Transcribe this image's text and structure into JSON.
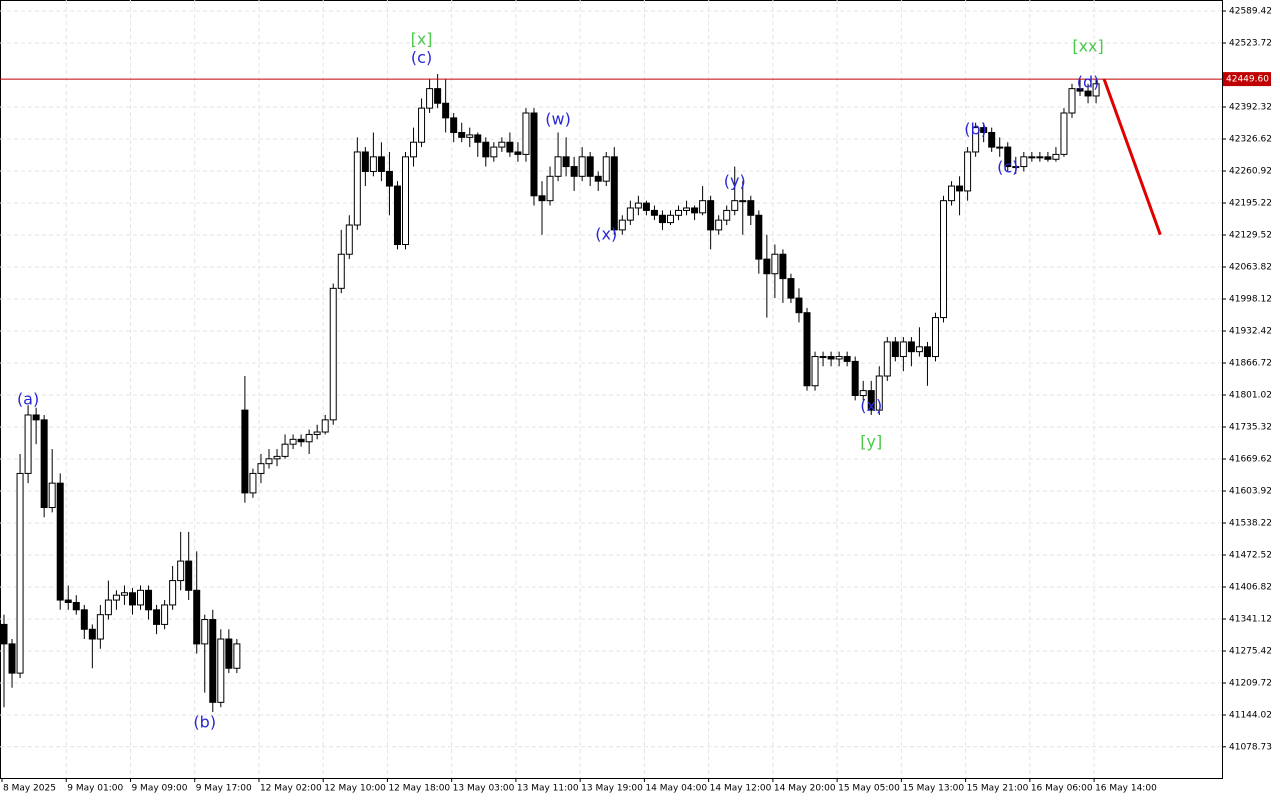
{
  "chart_data": {
    "type": "candlestick",
    "categories": [
      "8 May 2025",
      null,
      null,
      null,
      null,
      null,
      null,
      null,
      "9 May 01:00",
      null,
      null,
      null,
      null,
      null,
      null,
      null,
      "9 May 09:00",
      null,
      null,
      null,
      null,
      null,
      null,
      null,
      "9 May 17:00",
      null,
      null,
      null,
      null,
      null,
      null,
      null,
      "12 May 02:00",
      null,
      null,
      null,
      null,
      null,
      null,
      null,
      "12 May 10:00",
      null,
      null,
      null,
      null,
      null,
      null,
      null,
      "12 May 18:00",
      null,
      null,
      null,
      null,
      null,
      null,
      null,
      "13 May 03:00",
      null,
      null,
      null,
      null,
      null,
      null,
      null,
      "13 May 11:00",
      null,
      null,
      null,
      null,
      null,
      null,
      null,
      "13 May 19:00",
      null,
      null,
      null,
      null,
      null,
      null,
      null,
      "14 May 04:00",
      null,
      null,
      null,
      null,
      null,
      null,
      null,
      "14 May 12:00",
      null,
      null,
      null,
      null,
      null,
      null,
      null,
      "14 May 20:00",
      null,
      null,
      null,
      null,
      null,
      null,
      null,
      "15 May 05:00",
      null,
      null,
      null,
      null,
      null,
      null,
      null,
      "15 May 13:00",
      null,
      null,
      null,
      null,
      null,
      null,
      null,
      "15 May 21:00",
      null,
      null,
      null,
      null,
      null,
      null,
      null,
      "16 May 06:00",
      null,
      null,
      null,
      null,
      null,
      null,
      null,
      "16 May 14:00"
    ],
    "ohlc": [
      [
        41330,
        41350,
        41160,
        41290
      ],
      [
        41290,
        41300,
        41200,
        41230
      ],
      [
        41230,
        41680,
        41220,
        41640
      ],
      [
        41640,
        41780,
        41620,
        41760
      ],
      [
        41760,
        41775,
        41700,
        41750
      ],
      [
        41750,
        41760,
        41550,
        41570
      ],
      [
        41570,
        41690,
        41560,
        41620
      ],
      [
        41620,
        41640,
        41360,
        41380
      ],
      [
        41380,
        41410,
        41360,
        41375
      ],
      [
        41375,
        41390,
        41350,
        41360
      ],
      [
        41360,
        41370,
        41300,
        41320
      ],
      [
        41320,
        41330,
        41240,
        41300
      ],
      [
        41300,
        41370,
        41280,
        41350
      ],
      [
        41350,
        41420,
        41340,
        41380
      ],
      [
        41380,
        41400,
        41360,
        41390
      ],
      [
        41390,
        41410,
        41370,
        41395
      ],
      [
        41395,
        41405,
        41350,
        41370
      ],
      [
        41370,
        41410,
        41360,
        41400
      ],
      [
        41400,
        41410,
        41340,
        41360
      ],
      [
        41360,
        41370,
        41310,
        41330
      ],
      [
        41330,
        41380,
        41320,
        41370
      ],
      [
        41370,
        41450,
        41360,
        41420
      ],
      [
        41420,
        41520,
        41400,
        41460
      ],
      [
        41460,
        41520,
        41380,
        41400
      ],
      [
        41400,
        41480,
        41270,
        41290
      ],
      [
        41290,
        41350,
        41190,
        41340
      ],
      [
        41340,
        41360,
        41150,
        41170
      ],
      [
        41170,
        41320,
        41160,
        41300
      ],
      [
        41300,
        41320,
        41230,
        41240
      ],
      [
        41240,
        41300,
        41230,
        41290
      ],
      [
        41770,
        41840,
        41580,
        41600
      ],
      [
        41600,
        41650,
        41590,
        41640
      ],
      [
        41640,
        41680,
        41620,
        41660
      ],
      [
        41660,
        41690,
        41650,
        41670
      ],
      [
        41670,
        41690,
        41655,
        41675
      ],
      [
        41675,
        41720,
        41670,
        41700
      ],
      [
        41700,
        41720,
        41690,
        41710
      ],
      [
        41710,
        41720,
        41695,
        41705
      ],
      [
        41705,
        41730,
        41680,
        41720
      ],
      [
        41720,
        41740,
        41710,
        41725
      ],
      [
        41725,
        41760,
        41720,
        41750
      ],
      [
        41750,
        42030,
        41740,
        42020
      ],
      [
        42020,
        42140,
        42010,
        42090
      ],
      [
        42090,
        42170,
        42080,
        42150
      ],
      [
        42150,
        42330,
        42140,
        42300
      ],
      [
        42300,
        42310,
        42230,
        42260
      ],
      [
        42260,
        42340,
        42250,
        42290
      ],
      [
        42290,
        42320,
        42240,
        42260
      ],
      [
        42260,
        42300,
        42170,
        42230
      ],
      [
        42230,
        42240,
        42100,
        42110
      ],
      [
        42110,
        42300,
        42100,
        42290
      ],
      [
        42290,
        42350,
        42270,
        42320
      ],
      [
        42320,
        42410,
        42310,
        42390
      ],
      [
        42390,
        42450,
        42380,
        42430
      ],
      [
        42430,
        42460,
        42390,
        42400
      ],
      [
        42400,
        42450,
        42340,
        42370
      ],
      [
        42370,
        42380,
        42320,
        42340
      ],
      [
        42340,
        42360,
        42320,
        42330
      ],
      [
        42330,
        42350,
        42310,
        42335
      ],
      [
        42335,
        42340,
        42290,
        42320
      ],
      [
        42320,
        42330,
        42270,
        42290
      ],
      [
        42290,
        42320,
        42280,
        42310
      ],
      [
        42310,
        42330,
        42300,
        42320
      ],
      [
        42320,
        42340,
        42290,
        42300
      ],
      [
        42300,
        42320,
        42280,
        42295
      ],
      [
        42295,
        42390,
        42280,
        42380
      ],
      [
        42380,
        42390,
        42190,
        42210
      ],
      [
        42210,
        42240,
        42130,
        42200
      ],
      [
        42200,
        42270,
        42190,
        42250
      ],
      [
        42250,
        42340,
        42240,
        42290
      ],
      [
        42290,
        42330,
        42250,
        42270
      ],
      [
        42270,
        42290,
        42220,
        42250
      ],
      [
        42250,
        42310,
        42240,
        42290
      ],
      [
        42290,
        42300,
        42230,
        42250
      ],
      [
        42250,
        42260,
        42220,
        42240
      ],
      [
        42240,
        42300,
        42230,
        42290
      ],
      [
        42290,
        42310,
        42130,
        42140
      ],
      [
        42140,
        42170,
        42130,
        42160
      ],
      [
        42160,
        42200,
        42150,
        42185
      ],
      [
        42185,
        42210,
        42170,
        42195
      ],
      [
        42195,
        42200,
        42170,
        42180
      ],
      [
        42180,
        42190,
        42160,
        42170
      ],
      [
        42170,
        42180,
        42140,
        42155
      ],
      [
        42155,
        42180,
        42150,
        42170
      ],
      [
        42170,
        42190,
        42160,
        42180
      ],
      [
        42180,
        42200,
        42170,
        42185
      ],
      [
        42185,
        42190,
        42160,
        42175
      ],
      [
        42175,
        42230,
        42170,
        42200
      ],
      [
        42200,
        42210,
        42100,
        42140
      ],
      [
        42140,
        42170,
        42130,
        42160
      ],
      [
        42160,
        42190,
        42150,
        42180
      ],
      [
        42180,
        42270,
        42170,
        42200
      ],
      [
        42200,
        42240,
        42130,
        42200
      ],
      [
        42200,
        42210,
        42150,
        42170
      ],
      [
        42170,
        42180,
        42050,
        42080
      ],
      [
        42080,
        42130,
        41960,
        42050
      ],
      [
        42050,
        42110,
        42000,
        42090
      ],
      [
        42090,
        42100,
        41990,
        42040
      ],
      [
        42040,
        42050,
        41990,
        42000
      ],
      [
        42000,
        42020,
        41950,
        41970
      ],
      [
        41970,
        41980,
        41810,
        41820
      ],
      [
        41820,
        41890,
        41810,
        41880
      ],
      [
        41880,
        41890,
        41860,
        41880
      ],
      [
        41880,
        41890,
        41860,
        41875
      ],
      [
        41875,
        41890,
        41860,
        41880
      ],
      [
        41880,
        41890,
        41860,
        41870
      ],
      [
        41870,
        41880,
        41790,
        41800
      ],
      [
        41800,
        41830,
        41790,
        41810
      ],
      [
        41810,
        41830,
        41760,
        41770
      ],
      [
        41770,
        41860,
        41760,
        41840
      ],
      [
        41840,
        41920,
        41830,
        41910
      ],
      [
        41910,
        41920,
        41870,
        41880
      ],
      [
        41880,
        41920,
        41850,
        41910
      ],
      [
        41910,
        41920,
        41860,
        41890
      ],
      [
        41890,
        41940,
        41880,
        41900
      ],
      [
        41900,
        41910,
        41820,
        41880
      ],
      [
        41880,
        41970,
        41870,
        41960
      ],
      [
        41960,
        42210,
        41950,
        42200
      ],
      [
        42200,
        42240,
        42190,
        42230
      ],
      [
        42230,
        42250,
        42170,
        42220
      ],
      [
        42220,
        42310,
        42200,
        42300
      ],
      [
        42300,
        42360,
        42290,
        42350
      ],
      [
        42350,
        42360,
        42320,
        42340
      ],
      [
        42340,
        42350,
        42300,
        42310
      ],
      [
        42310,
        42330,
        42290,
        42310
      ],
      [
        42310,
        42320,
        42260,
        42270
      ],
      [
        42270,
        42290,
        42255,
        42270
      ],
      [
        42270,
        42300,
        42260,
        42290
      ],
      [
        42290,
        42300,
        42280,
        42290
      ],
      [
        42290,
        42300,
        42280,
        42290
      ],
      [
        42290,
        42300,
        42280,
        42285
      ],
      [
        42285,
        42310,
        42280,
        42295
      ],
      [
        42295,
        42390,
        42290,
        42380
      ],
      [
        42380,
        42440,
        42370,
        42430
      ],
      [
        42430,
        42450,
        42415,
        42425
      ],
      [
        42425,
        42440,
        42400,
        42415
      ],
      [
        42415,
        42450,
        42400,
        42440
      ]
    ],
    "ylim": [
      41014.67,
      42612
    ],
    "yticks": [
      42589.42,
      42523.72,
      42392.32,
      42326.62,
      42260.92,
      42195.22,
      42129.52,
      42063.82,
      41998.12,
      41932.42,
      41866.72,
      41801.02,
      41735.32,
      41669.62,
      41603.92,
      41538.22,
      41472.52,
      41406.82,
      41341.12,
      41275.42,
      41209.72,
      41144.02,
      41078.73
    ],
    "grid": true,
    "up_color": "#ffffff",
    "down_color": "#000000",
    "price_line": {
      "value": 42449.6,
      "label": "42449.60",
      "color": "#c00000"
    },
    "forecast": {
      "from": {
        "candle": 137,
        "price": 42449.6
      },
      "to": {
        "candle": 144,
        "price": 42130
      },
      "color": "#e00000"
    },
    "annotations": [
      {
        "text": "[x]",
        "candle": 52,
        "price": 42530,
        "color": "#4cc84c"
      },
      {
        "text": "(c)",
        "candle": 52,
        "price": 42492,
        "color": "#2828d8"
      },
      {
        "text": "(a)",
        "candle": 3,
        "price": 41791,
        "color": "#2828d8"
      },
      {
        "text": "(b)",
        "candle": 25,
        "price": 41128,
        "color": "#2828d8"
      },
      {
        "text": "(w)",
        "candle": 69,
        "price": 42366,
        "color": "#2828d8"
      },
      {
        "text": "(x)",
        "candle": 75,
        "price": 42130,
        "color": "#2828d8"
      },
      {
        "text": "(y)",
        "candle": 91,
        "price": 42238,
        "color": "#2828d8"
      },
      {
        "text": "(x)",
        "candle": 108,
        "price": 41777,
        "color": "#2828d8"
      },
      {
        "text": "[y]",
        "candle": 108,
        "price": 41703,
        "color": "#4cc84c"
      },
      {
        "text": "(b)",
        "candle": 121,
        "price": 42345,
        "color": "#2828d8"
      },
      {
        "text": "(c)",
        "candle": 125,
        "price": 42267,
        "color": "#2828d8"
      },
      {
        "text": "[xx]",
        "candle": 135,
        "price": 42516,
        "color": "#4cc84c"
      },
      {
        "text": "(d)",
        "candle": 135,
        "price": 42442,
        "color": "#2828d8"
      }
    ]
  }
}
